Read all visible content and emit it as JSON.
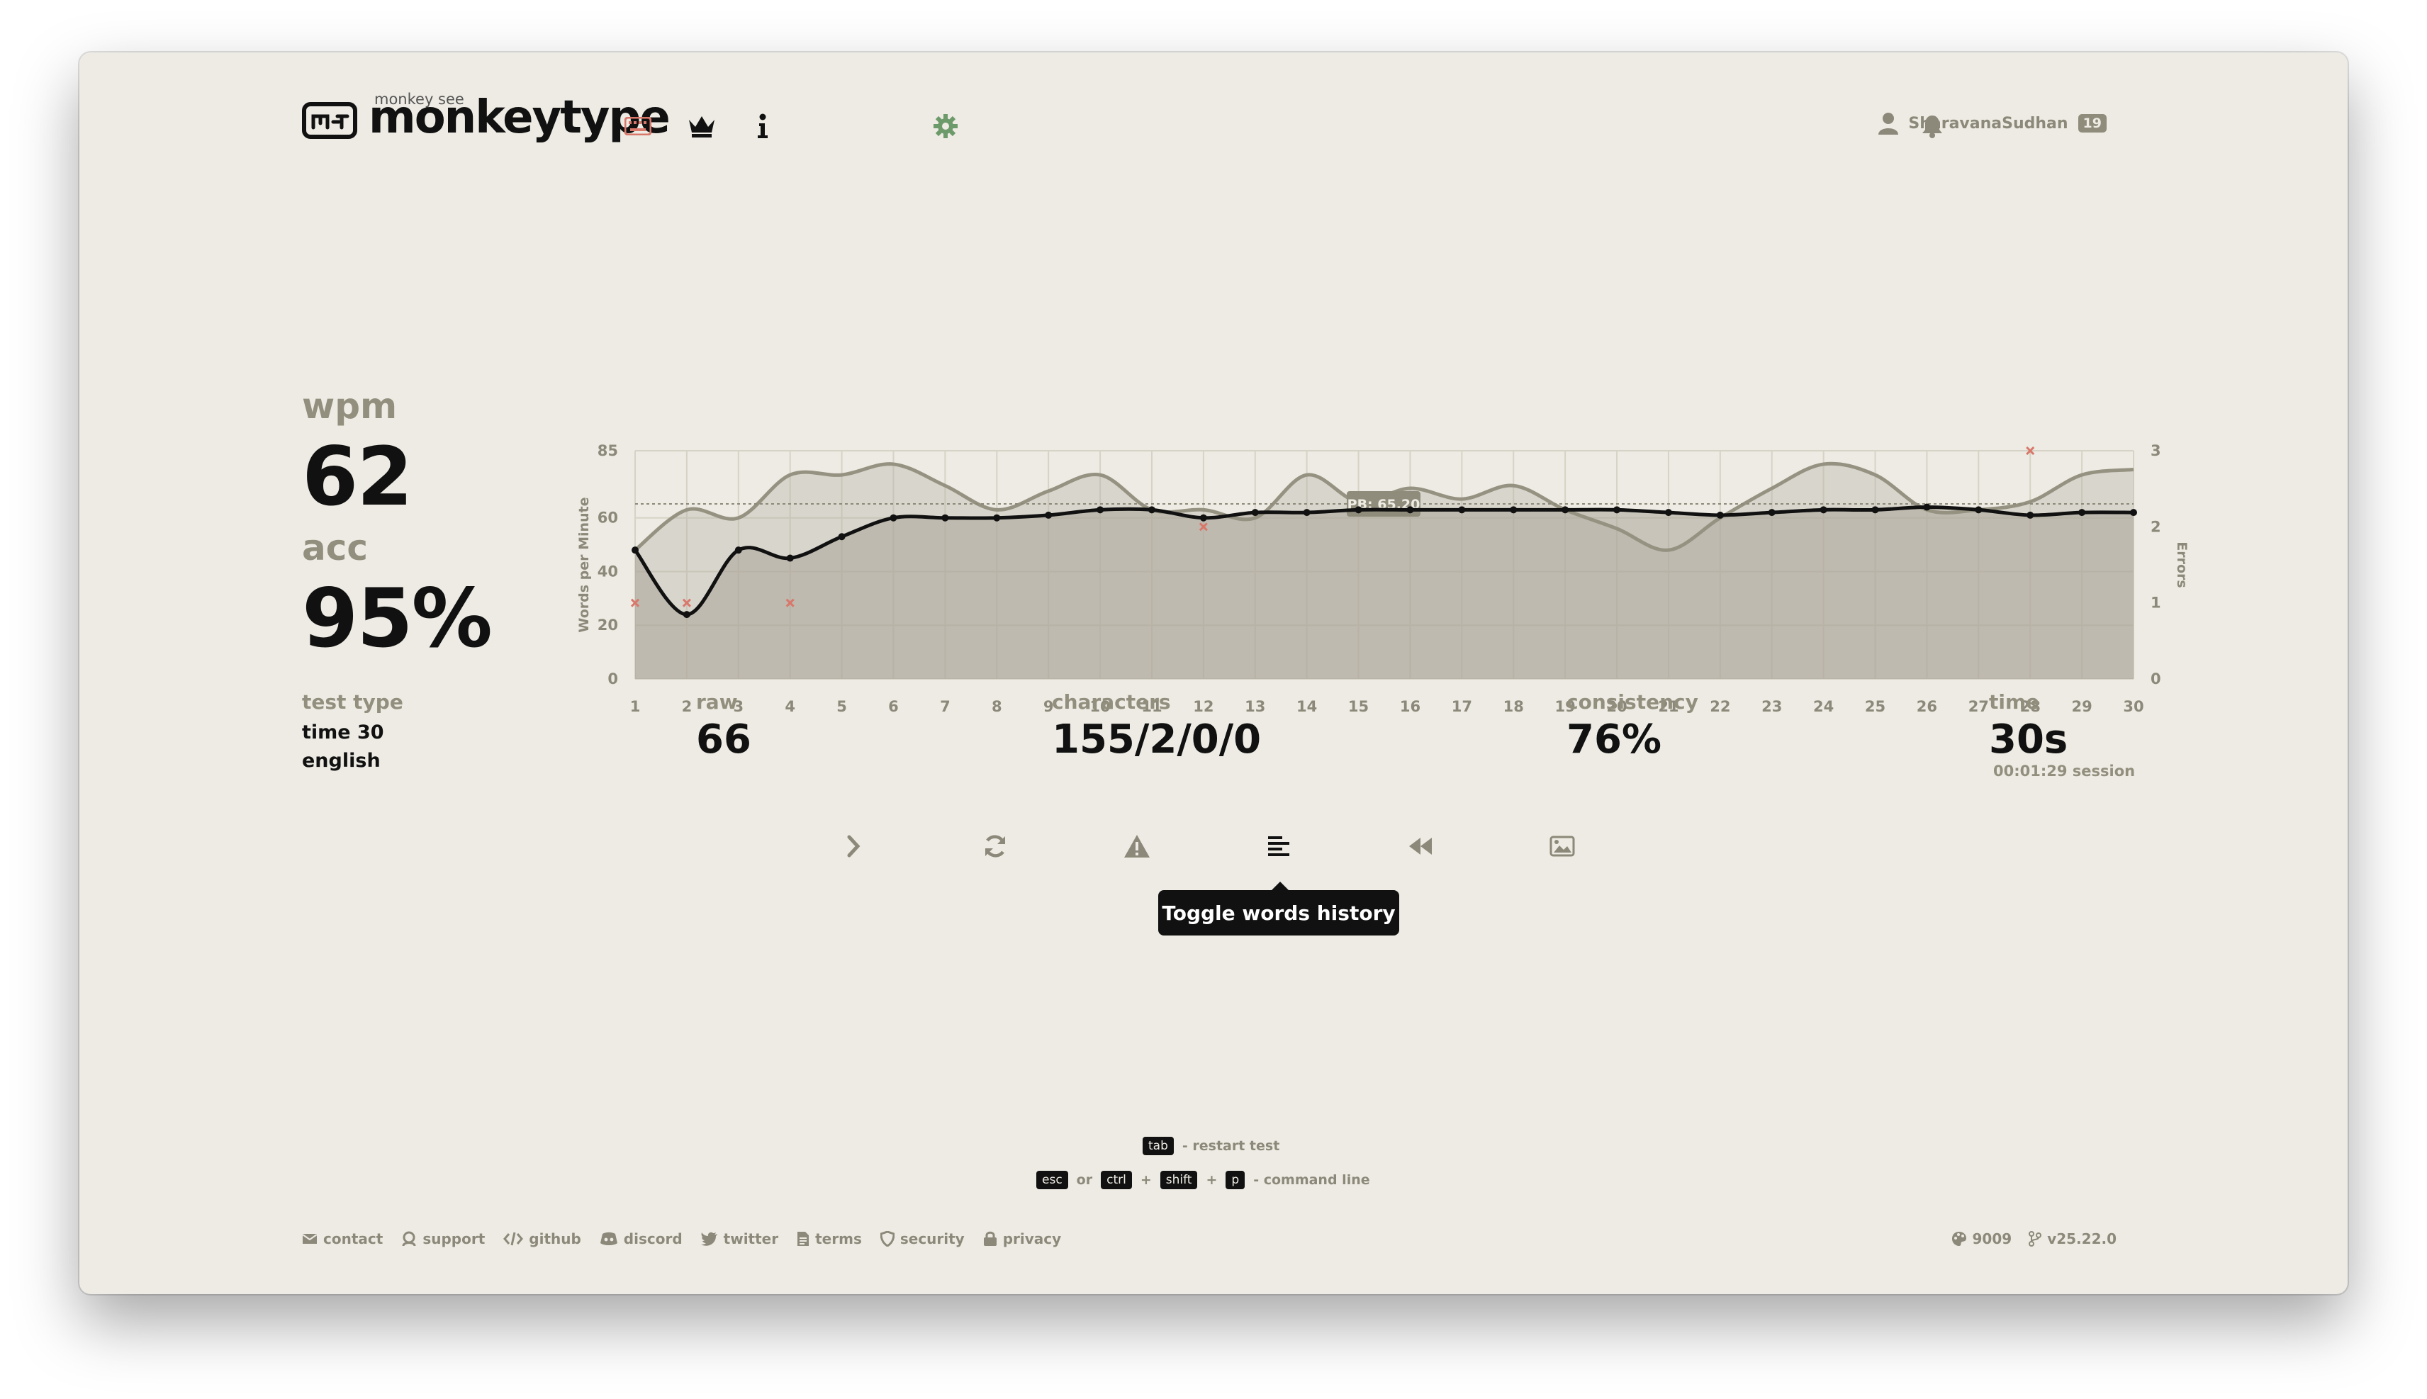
{
  "header": {
    "logo_small": "monkey see",
    "logo_text": "monkeytype",
    "user_name": "SharavanaSudhan",
    "user_level": "19"
  },
  "icons": {
    "keyboard": "keyboard-icon",
    "leaderboard": "crown-icon",
    "about": "info-icon",
    "settings": "gear-icon",
    "notifications": "bell-icon",
    "account": "user-icon"
  },
  "colors": {
    "background": "#edebe3",
    "main": "#111111",
    "sub": "#928f7e",
    "error": "#d9776b",
    "accent_settings": "#6d9a6a"
  },
  "stats": {
    "wpm_label": "wpm",
    "wpm_value": "62",
    "acc_label": "acc",
    "acc_value": "95%",
    "test_type_label": "test type",
    "test_type_mode": "time 30",
    "test_type_language": "english",
    "raw_label": "raw",
    "raw_value": "66",
    "characters_label": "characters",
    "characters_value": "155/2/0/0",
    "consistency_label": "consistency",
    "consistency_value": "76%",
    "time_label": "time",
    "time_value": "30s",
    "time_session": "00:01:29 session"
  },
  "chart_data": {
    "type": "line",
    "x": [
      1,
      2,
      3,
      4,
      5,
      6,
      7,
      8,
      9,
      10,
      11,
      12,
      13,
      14,
      15,
      16,
      17,
      18,
      19,
      20,
      21,
      22,
      23,
      24,
      25,
      26,
      27,
      28,
      29,
      30
    ],
    "series": [
      {
        "name": "wpm",
        "values": [
          48,
          24,
          48,
          45,
          53,
          60,
          60,
          60,
          61,
          63,
          63,
          60,
          62,
          62,
          63,
          63,
          63,
          63,
          63,
          63,
          62,
          61,
          62,
          63,
          63,
          64,
          63,
          61,
          62,
          62
        ]
      },
      {
        "name": "raw",
        "values": [
          48,
          63,
          60,
          76,
          76,
          80,
          72,
          63,
          70,
          76,
          63,
          63,
          60,
          76,
          66,
          71,
          67,
          72,
          63,
          56,
          48,
          60,
          71,
          80,
          76,
          63,
          63,
          66,
          76,
          78
        ]
      }
    ],
    "errors": [
      {
        "x": 1,
        "y": 1
      },
      {
        "x": 2,
        "y": 1
      },
      {
        "x": 4,
        "y": 1
      },
      {
        "x": 12,
        "y": 2
      },
      {
        "x": 28,
        "y": 3
      }
    ],
    "pb": 65.2,
    "pb_label": "PB: 65.20",
    "ylabel": "Words per Minute",
    "y2label": "Errors",
    "ylim": [
      0,
      85
    ],
    "y_ticks": [
      "0",
      "20",
      "40",
      "60",
      "85"
    ],
    "y2lim": [
      0,
      3
    ],
    "y2_ticks": [
      "0",
      "1",
      "2",
      "3"
    ],
    "grid": true
  },
  "actions": {
    "next_test": "chevron-right-icon",
    "restart": "refresh-icon",
    "report": "warning-icon",
    "words_history": "words-history-icon",
    "replay": "rewind-icon",
    "screenshot": "image-icon",
    "tooltip": "Toggle words history"
  },
  "hints": {
    "tab_key": "tab",
    "tab_text": "- restart test",
    "esc_key": "esc",
    "or_text": "or",
    "ctrl_key": "ctrl",
    "plus": "+",
    "shift_key": "shift",
    "p_key": "p",
    "command_text": "- command line"
  },
  "footer": {
    "links": [
      "contact",
      "support",
      "github",
      "discord",
      "twitter",
      "terms",
      "security",
      "privacy"
    ],
    "theme": "9009",
    "version": "v25.22.0"
  }
}
